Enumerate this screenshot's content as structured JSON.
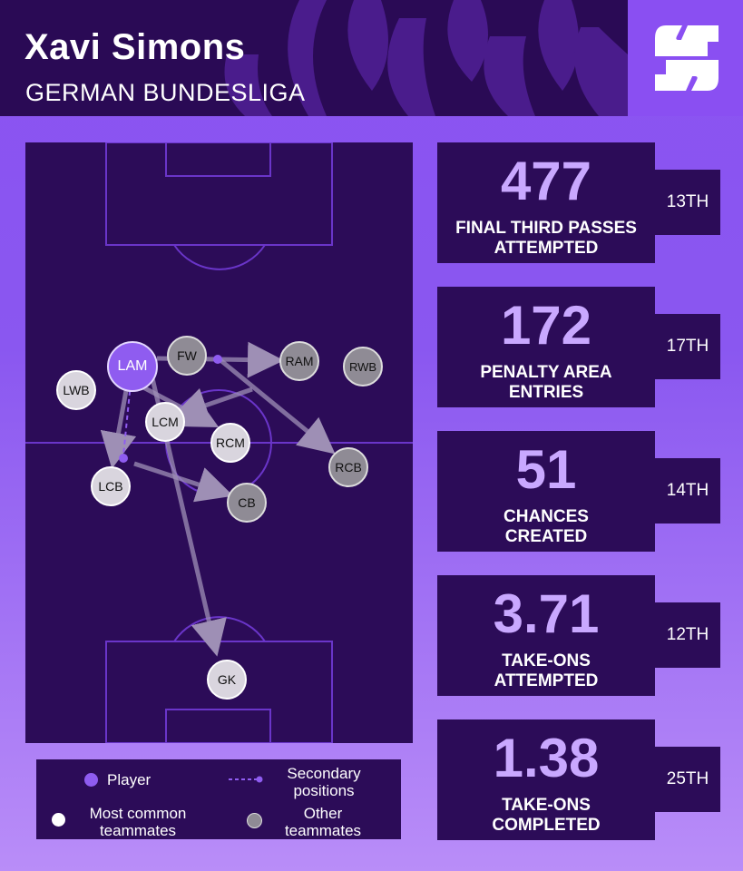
{
  "header": {
    "title": "Xavi Simons",
    "subtitle": "GERMAN BUNDESLIGA",
    "logo_icon": "stylized-s-logo-icon"
  },
  "colors": {
    "background": "#8b52f2",
    "panel": "#2c0c58",
    "value_text": "#c9a8ff",
    "player": "#8f5cf0",
    "most_common": "#d9d5de",
    "other": "#8f8b95"
  },
  "pitch": {
    "nodes": [
      {
        "label": "LAM",
        "kind": "player"
      },
      {
        "label": "FW",
        "kind": "other"
      },
      {
        "label": "RAM",
        "kind": "other"
      },
      {
        "label": "RWB",
        "kind": "other"
      },
      {
        "label": "LWB",
        "kind": "common"
      },
      {
        "label": "LCM",
        "kind": "common"
      },
      {
        "label": "RCM",
        "kind": "common"
      },
      {
        "label": "RCB",
        "kind": "other"
      },
      {
        "label": "LCB",
        "kind": "common"
      },
      {
        "label": "CB",
        "kind": "other"
      },
      {
        "label": "GK",
        "kind": "common"
      }
    ]
  },
  "legend": {
    "player": "Player",
    "secondary_line1": "Secondary",
    "secondary_line2": "positions",
    "common_line1": "Most common",
    "common_line2": "teammates",
    "other_line1": "Other",
    "other_line2": "teammates"
  },
  "stats": [
    {
      "value": "477",
      "label1": "FINAL THIRD PASSES",
      "label2": "ATTEMPTED",
      "rank": "13TH"
    },
    {
      "value": "172",
      "label1": "PENALTY AREA",
      "label2": "ENTRIES",
      "rank": "17TH"
    },
    {
      "value": "51",
      "label1": "CHANCES",
      "label2": "CREATED",
      "rank": "14TH"
    },
    {
      "value": "3.71",
      "label1": "TAKE-ONS",
      "label2": "ATTEMPTED",
      "rank": "12TH"
    },
    {
      "value": "1.38",
      "label1": "TAKE-ONS",
      "label2": "COMPLETED",
      "rank": "25TH"
    }
  ]
}
